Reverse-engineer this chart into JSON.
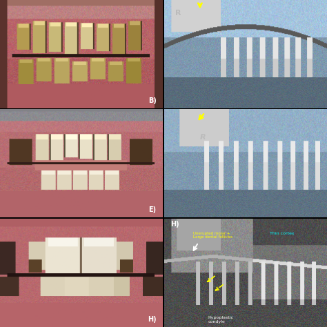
{
  "figsize": [
    4.74,
    4.74
  ],
  "dpi": 100,
  "background_color": "#000000",
  "panels": {
    "B_label": "B)",
    "E_label": "E)",
    "H_label": "H)",
    "label_color_white": "#ffffff",
    "label_color_gray": "#aaaaaa",
    "xray1_bg": [
      160,
      185,
      200
    ],
    "xray2_bg": [
      155,
      180,
      200
    ],
    "xray3_bg": [
      80,
      80,
      85
    ],
    "dental1_bg_upper": [
      180,
      80,
      90
    ],
    "dental1_bg_lower": [
      160,
      70,
      80
    ],
    "dental2_bg": [
      160,
      100,
      110
    ],
    "dental3_bg": [
      190,
      100,
      110
    ],
    "yellow_arrow": "#ffff00",
    "white_arrow": "#ffffff",
    "cyan_text": "#00ffff",
    "R_label": "R",
    "annotations_H": [
      {
        "text": "Hypoplastic\ncondyle",
        "color": "#ffffff"
      },
      {
        "text": "Unerupted molar +\nLarge dental follicles",
        "color": "#ffff00"
      },
      {
        "text": "Thin cortex",
        "color": "#00ffff"
      }
    ]
  }
}
